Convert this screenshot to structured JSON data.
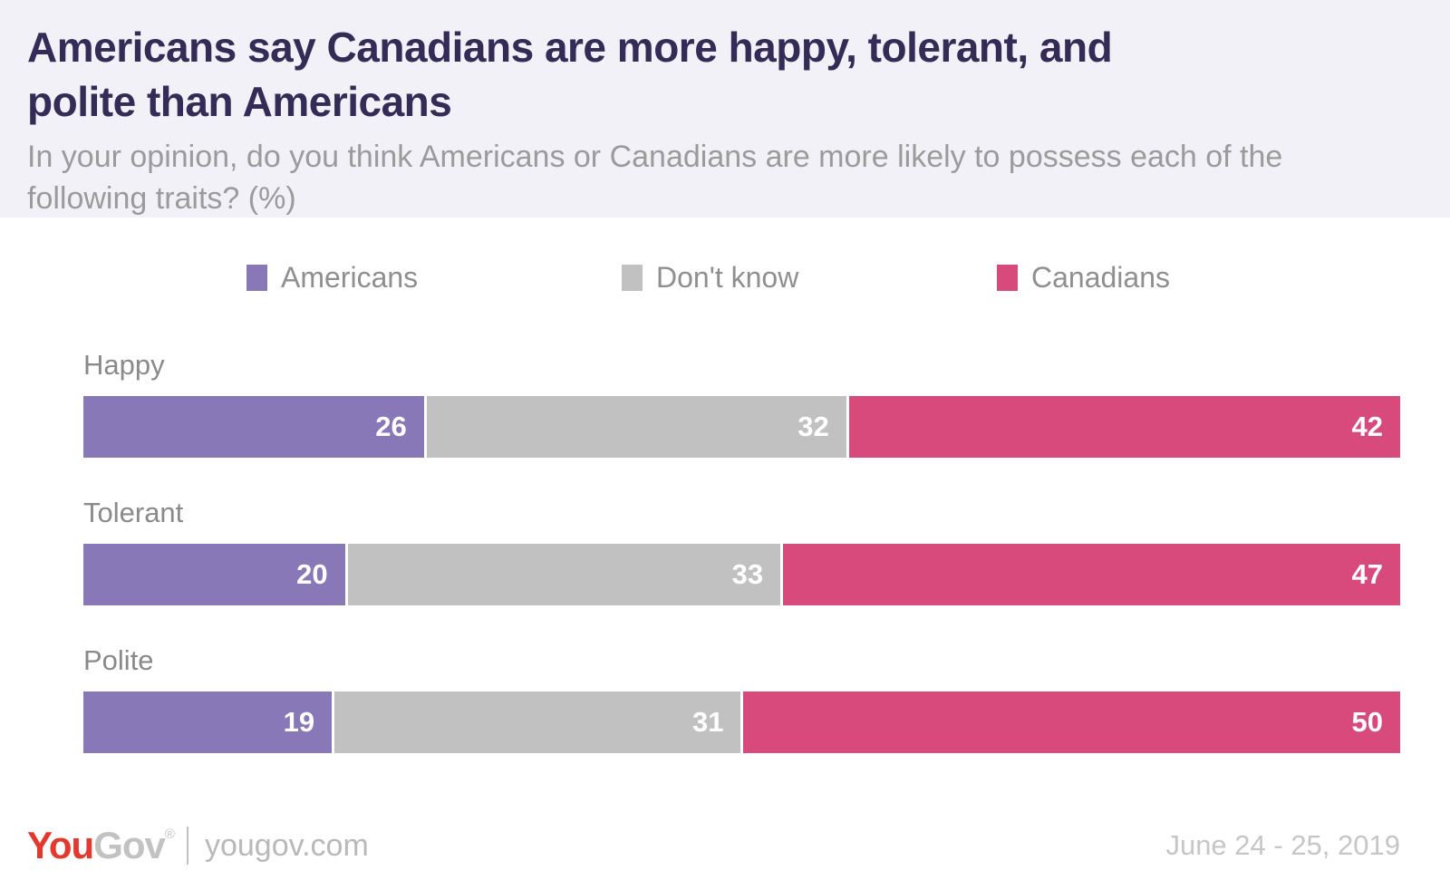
{
  "header": {
    "title": "Americans say Canadians are more happy, tolerant, and polite than Americans",
    "subtitle": "In your opinion, do you think Americans or Canadians are more likely to possess each of the following traits? (%)"
  },
  "chart_data": {
    "type": "bar",
    "orientation": "horizontal",
    "stacked": true,
    "unit": "%",
    "title": "Americans say Canadians are more happy, tolerant, and polite than Americans",
    "categories": [
      "Happy",
      "Tolerant",
      "Polite"
    ],
    "series": [
      {
        "name": "Americans",
        "color": "#8978b8",
        "values": [
          26,
          20,
          19
        ]
      },
      {
        "name": "Don't know",
        "color": "#c1c1c1",
        "values": [
          32,
          33,
          31
        ]
      },
      {
        "name": "Canadians",
        "color": "#d94a7c",
        "values": [
          42,
          47,
          50
        ]
      }
    ],
    "xlim": [
      0,
      100
    ],
    "legend_position": "top",
    "value_labels": "inside-end",
    "value_label_color": "#ffffff",
    "grid": false
  },
  "footer": {
    "logo_you": "You",
    "logo_gov": "Gov",
    "logo_reg": "®",
    "site": "yougov.com",
    "date": "June 24 - 25, 2019"
  },
  "colors": {
    "header_bg": "#f2f1f7",
    "title_text": "#342b56",
    "subtitle_text": "#9b9b9b",
    "category_label_text": "#8a8a8a",
    "legend_text": "#8f8f8f",
    "americans_purple": "#8978b8",
    "dont_know_gray": "#c1c1c1",
    "canadians_pink": "#d94a7c",
    "value_label_text": "#ffffff",
    "logo_red": "#e5372c",
    "logo_gray": "#c2c2c2",
    "date_text": "#c6c6c6"
  }
}
